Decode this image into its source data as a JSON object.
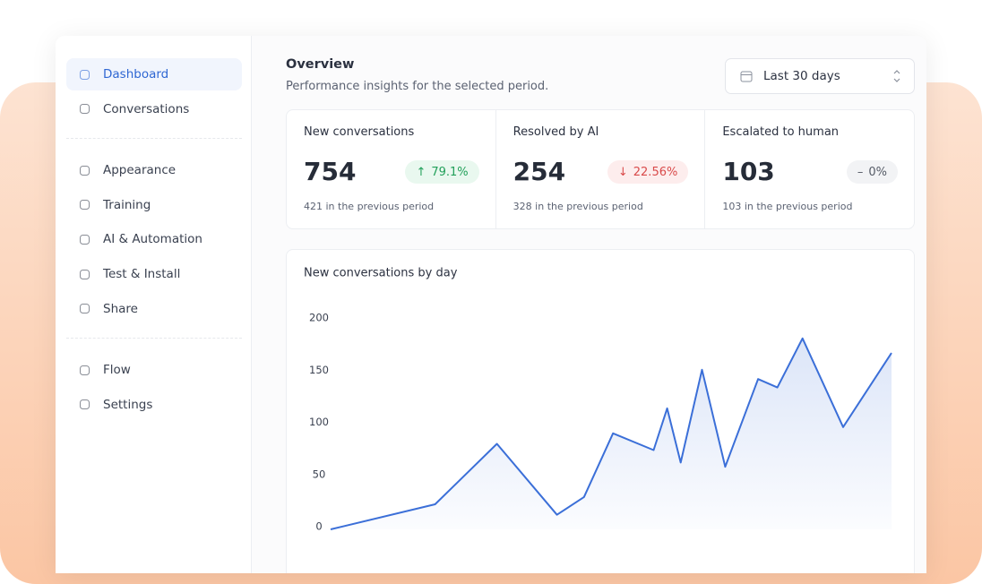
{
  "sidebar": {
    "groups": [
      [
        "Dashboard",
        "Conversations"
      ],
      [
        "Appearance",
        "Training",
        "AI & Automation",
        "Test & Install",
        "Share"
      ],
      [
        "Flow",
        "Settings"
      ]
    ],
    "active": "Dashboard"
  },
  "header": {
    "title": "Overview",
    "subtitle": "Performance insights for the selected period.",
    "date_range": "Last 30 days"
  },
  "stats": [
    {
      "label": "New conversations",
      "value": 754,
      "change": "79.1%",
      "direction": "up",
      "previous": "421 in the previous period"
    },
    {
      "label": "Resolved by AI",
      "value": 254,
      "change": "22.56%",
      "direction": "down",
      "previous": "328 in the previous period"
    },
    {
      "label": "Escalated to human",
      "value": 103,
      "change": "0%",
      "direction": "flat",
      "previous": "103 in the previous period"
    }
  ],
  "chart_data": {
    "type": "line",
    "title": "New conversations by day",
    "x": [
      0,
      5.4,
      8.6,
      11.7,
      13.1,
      14.6,
      16.7,
      17.4,
      18.1,
      19.2,
      20.4,
      22.1,
      23.1,
      24.4,
      26.5,
      29
    ],
    "xlim": [
      0,
      29
    ],
    "series": [
      {
        "color": "#3b6fd8",
        "values": [
          0,
          24,
          82,
          14,
          31,
          92,
          76,
          116,
          64,
          153,
          60,
          144,
          136,
          183,
          98,
          169
        ]
      }
    ],
    "ylim": [
      0,
      200
    ],
    "yticks": [
      0,
      50,
      100,
      150,
      200
    ],
    "area": true
  }
}
